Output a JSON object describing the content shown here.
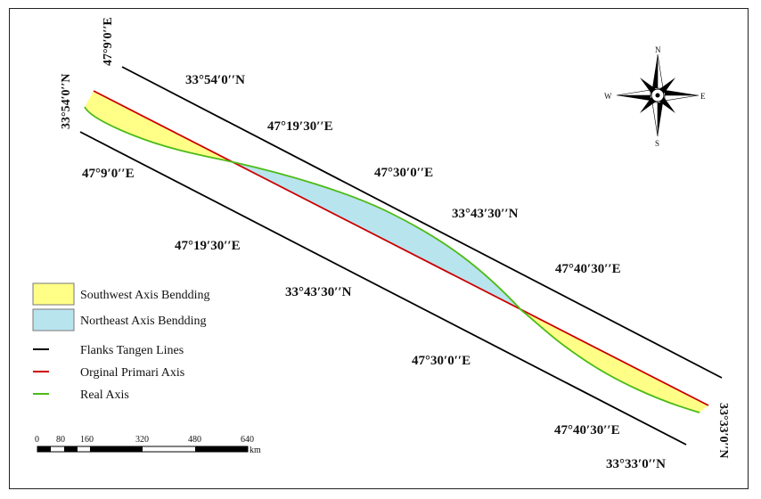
{
  "map": {
    "top_labels": [
      "47°9′0′′E",
      "33°54′0′′N",
      "47°19′30′′E",
      "47°30′0′′E",
      "33°43′30′′N",
      "47°40′30′′E"
    ],
    "left_label_vertical": "33°54′0′′N",
    "bottom_labels": [
      "47°9′0′′E",
      "47°19′30′′E",
      "33°43′30′′N",
      "47°30′0′′E",
      "47°40′30′′E",
      "33°33′0′′N"
    ],
    "right_label_vertical": "33°33′0′′N"
  },
  "compass": {
    "north": "N",
    "south": "S",
    "east": "E",
    "west": "W"
  },
  "legend": {
    "items": [
      {
        "label": "Southwest Axis Bendding",
        "kind": "fill",
        "color": "#ffff88"
      },
      {
        "label": "Northeast Axis Bendding",
        "kind": "fill",
        "color": "#b8e4ee"
      },
      {
        "label": "Flanks Tangen Lines",
        "kind": "line",
        "color": "#000000"
      },
      {
        "label": "Orginal Primari Axis",
        "kind": "line",
        "color": "#cc0000"
      },
      {
        "label": "Real Axis",
        "kind": "line",
        "color": "#4cbb17"
      }
    ]
  },
  "scale_bar": {
    "ticks": [
      "0",
      "80",
      "160",
      "320",
      "480",
      "640"
    ],
    "unit": "km"
  }
}
